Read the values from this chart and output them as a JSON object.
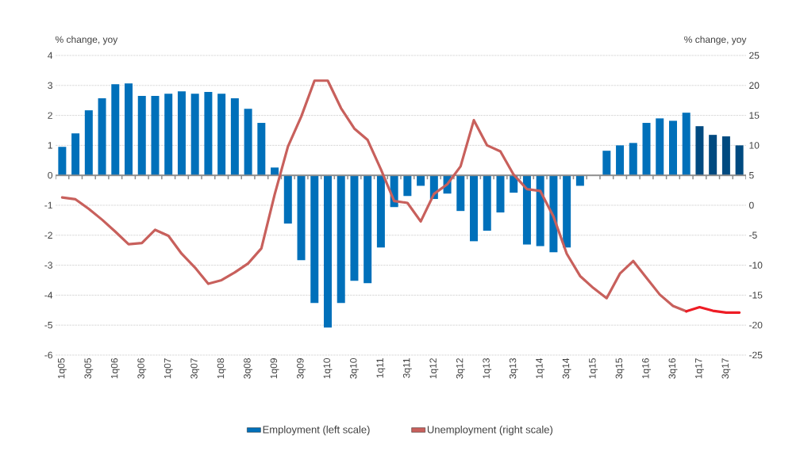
{
  "chart_data": {
    "type": "bar",
    "categories": [
      "1q05",
      null,
      "3q05",
      null,
      "1q06",
      null,
      "3q06",
      null,
      "1q07",
      null,
      "3q07",
      null,
      "1q08",
      null,
      "3q08",
      null,
      "1q09",
      null,
      "3q09",
      null,
      "1q10",
      null,
      "3q10",
      null,
      "1q11",
      null,
      "3q11",
      null,
      "1q12",
      null,
      "3q12",
      null,
      "1q13",
      null,
      "3q13",
      null,
      "1q14",
      null,
      "3q14",
      null,
      "1q15",
      null,
      "3q15",
      null,
      "1q16",
      null,
      "3q16",
      null,
      "1q17",
      null,
      "3q17",
      null
    ],
    "ylabel": "% change, yoy",
    "y2label": "% change, yoy",
    "ylim": [
      -6,
      4
    ],
    "yticks": [
      -6,
      -5,
      -4,
      -3,
      -2,
      -1,
      0,
      1,
      2,
      3,
      4
    ],
    "y2lim": [
      -25,
      25
    ],
    "y2ticks": [
      -25,
      -20,
      -15,
      -10,
      -5,
      0,
      5,
      10,
      15,
      20,
      25
    ],
    "grid": "y",
    "legend": "bottom",
    "series": [
      {
        "name": "Employment (left scale)",
        "color": "#0070ba",
        "colors": [
          "#0070ba",
          "#0070ba",
          "#0070ba",
          "#0070ba",
          "#0070ba",
          "#0070ba",
          "#0070ba",
          "#0070ba",
          "#0070ba",
          "#0070ba",
          "#0070ba",
          "#0070ba",
          "#0070ba",
          "#0070ba",
          "#0070ba",
          "#0070ba",
          "#0070ba",
          "#0070ba",
          "#0070ba",
          "#0070ba",
          "#0070ba",
          "#0070ba",
          "#0070ba",
          "#0070ba",
          "#0070ba",
          "#0070ba",
          "#0070ba",
          "#0070ba",
          "#0070ba",
          "#0070ba",
          "#0070ba",
          "#0070ba",
          "#0070ba",
          "#0070ba",
          "#0070ba",
          "#0070ba",
          "#0070ba",
          "#0070ba",
          "#0070ba",
          "#0070ba",
          "#0070ba",
          "#0070ba",
          "#0070ba",
          "#0070ba",
          "#0070ba",
          "#0070ba",
          "#0070ba",
          "#0070ba",
          "#004a80",
          "#004a80",
          "#004a80",
          "#004a80"
        ],
        "values": [
          0.95,
          1.4,
          2.17,
          2.57,
          3.04,
          3.07,
          2.65,
          2.65,
          2.72,
          2.8,
          2.72,
          2.78,
          2.72,
          2.57,
          2.22,
          1.75,
          0.26,
          -1.61,
          -2.83,
          -4.26,
          -5.08,
          -4.26,
          -3.52,
          -3.6,
          -2.41,
          -1.06,
          -0.69,
          -0.35,
          -0.79,
          -0.61,
          -1.19,
          -2.2,
          -1.85,
          -1.24,
          -0.58,
          -2.31,
          -2.36,
          -2.57,
          -2.41,
          -0.35,
          0,
          0.82,
          1.0,
          1.08,
          1.75,
          1.9,
          1.82,
          2.09,
          1.64,
          1.35,
          1.3,
          1.0
        ]
      },
      {
        "name": "Unemployment (right scale)",
        "type": "line",
        "axis": "y2",
        "color": "#c8605c",
        "values": [
          1.3,
          1.0,
          -0.6,
          -2.4,
          -4.4,
          -6.5,
          -6.3,
          -4.1,
          -5.1,
          -8.1,
          -10.4,
          -13.1,
          -12.5,
          -11.2,
          -9.7,
          -7.2,
          1.8,
          9.8,
          14.8,
          20.8,
          20.8,
          16.2,
          12.8,
          10.9,
          6.0,
          0.7,
          0.4,
          -2.7,
          1.9,
          3.5,
          6.5,
          14.2,
          10.0,
          9.0,
          5.1,
          2.7,
          2.4,
          -1.9,
          -8.1,
          -11.8,
          -13.8,
          -15.5,
          -11.4,
          -9.3,
          -12.1,
          -14.9,
          -16.8,
          -17.7,
          null,
          null,
          null,
          null
        ]
      },
      {
        "type": "line",
        "axis": "y2",
        "color": "#ee1c25",
        "values": [
          null,
          null,
          null,
          null,
          null,
          null,
          null,
          null,
          null,
          null,
          null,
          null,
          null,
          null,
          null,
          null,
          null,
          null,
          null,
          null,
          null,
          null,
          null,
          null,
          null,
          null,
          null,
          null,
          null,
          null,
          null,
          null,
          null,
          null,
          null,
          null,
          null,
          null,
          null,
          null,
          null,
          null,
          null,
          null,
          null,
          null,
          null,
          -17.7,
          -17.0,
          -17.6,
          -17.9,
          -17.9
        ]
      }
    ]
  }
}
